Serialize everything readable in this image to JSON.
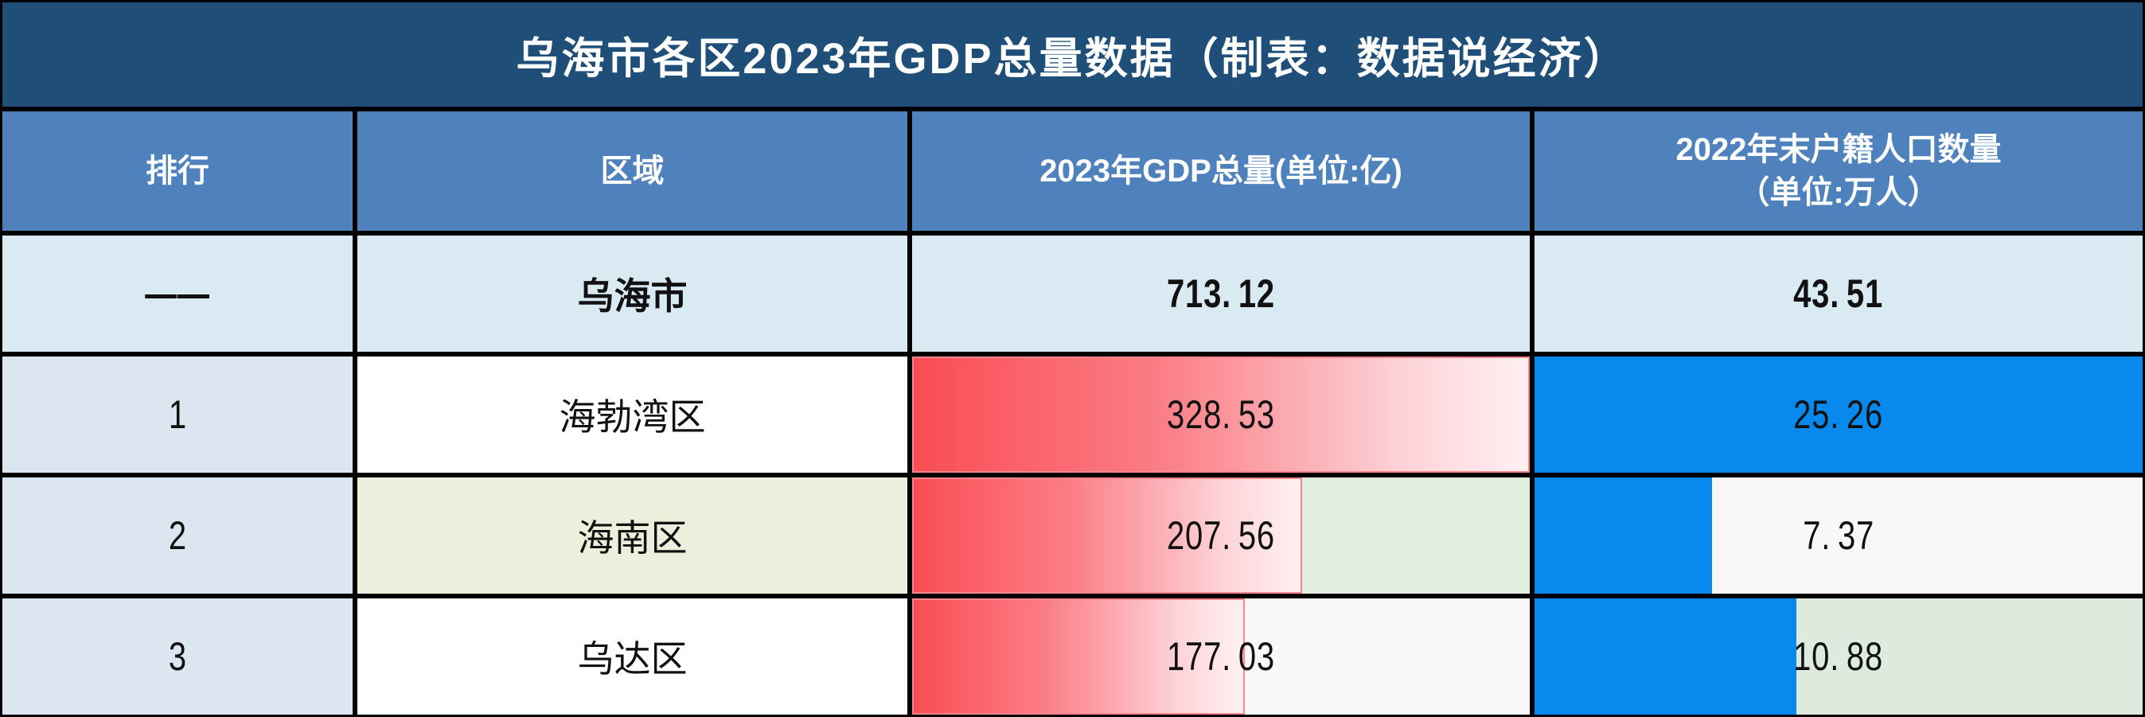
{
  "title": "乌海市各区2023年GDP总量数据（制表：数据说经济）",
  "colors": {
    "title_bg": "#1f4e79",
    "header_bg": "#4f81bd",
    "border": "#000000",
    "city_row_bg": "#d9eaf3",
    "rank_col_bg": "#dce6f1",
    "region_green_bg": "#eaf0db",
    "gdp_bar_start": "#f94d55",
    "gdp_bar_end": "#fff0f2",
    "pop_bar": "#0789ee"
  },
  "table": {
    "headers": {
      "rank": "排行",
      "region": "区域",
      "gdp": "2023年GDP总量(单位:亿)",
      "pop_line1": "2022年末户籍人口数量",
      "pop_line2": "（单位:万人）"
    },
    "rows": [
      {
        "rank": "——",
        "region": "乌海市",
        "gdp_value": "713.12",
        "pop_value": "43.51",
        "bold": true,
        "rank_bg": "#d9eaf3",
        "region_bg": "#d9eaf3",
        "gdp_bar": 0,
        "gdp_bg": "#d9eaf3",
        "pop_bar": 0,
        "pop_bg": "#d9eaf3"
      },
      {
        "rank": "1",
        "region": "海勃湾区",
        "gdp_value": "328.53",
        "pop_value": "25.26",
        "bold": false,
        "rank_bg": "#dce6f1",
        "region_bg": "#ffffff",
        "gdp_bar": 1,
        "gdp_bg": "#ffffff",
        "pop_bar": 1,
        "pop_bg": "#ffffff"
      },
      {
        "rank": "2",
        "region": "海南区",
        "gdp_value": "207.56",
        "pop_value": "7.37",
        "bold": false,
        "rank_bg": "#dce6f1",
        "region_bg": "#eaf0db",
        "gdp_bar": 0.632,
        "gdp_bg": "#dfeedf",
        "pop_bar": 0.292,
        "pop_bg": "#f8f8fb"
      },
      {
        "rank": "3",
        "region": "乌达区",
        "gdp_value": "177.03",
        "pop_value": "10.88",
        "bold": false,
        "rank_bg": "#dce6f1",
        "region_bg": "#ffffff",
        "gdp_bar": 0.539,
        "gdp_bg": "#f8f8fb",
        "pop_bar": 0.431,
        "pop_bg": "#ddeade"
      }
    ]
  },
  "chart_data": {
    "type": "table",
    "title": "乌海市各区2023年GDP总量数据（制表：数据说经济）",
    "columns": [
      "排行",
      "区域",
      "2023年GDP总量(单位:亿)",
      "2022年末户籍人口数量（单位:万人）"
    ],
    "rows": [
      [
        "——",
        "乌海市",
        713.12,
        43.51
      ],
      [
        "1",
        "海勃湾区",
        328.53,
        25.26
      ],
      [
        "2",
        "海南区",
        207.56,
        7.37
      ],
      [
        "3",
        "乌达区",
        177.03,
        10.88
      ]
    ],
    "bar_max": {
      "gdp": 328.53,
      "pop": 25.26
    },
    "bar_styles": {
      "gdp": "red-gradient-databar",
      "pop": "blue-solid-databar"
    }
  }
}
